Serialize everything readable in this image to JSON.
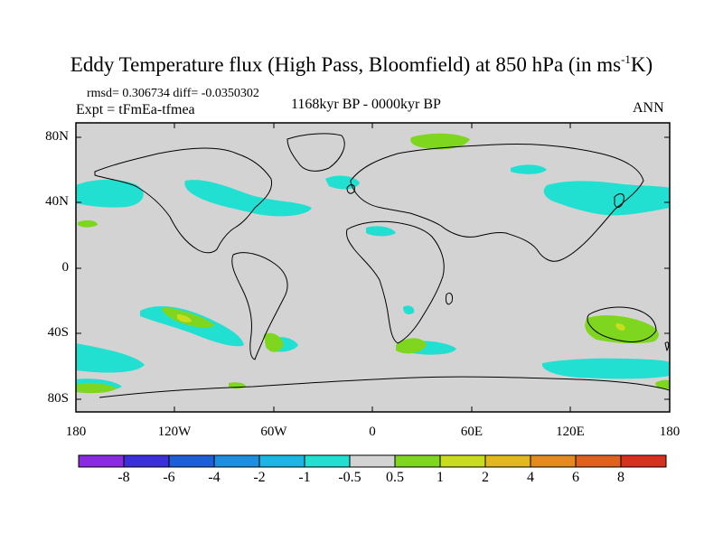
{
  "title": {
    "main": "Eddy Temperature flux (High Pass, Bloomfield) at 850 hPa (in ms",
    "superscript": "-1",
    "end": "K)"
  },
  "subtitle": {
    "stats": "rmsd= 0.306734 diff= -0.0350302",
    "experiment": "Expt = tFmEa-tfmea",
    "period": "1168kyr BP - 0000kyr BP",
    "season": "ANN"
  },
  "axes": {
    "lat_labels": [
      "80N",
      "40N",
      "0",
      "40S",
      "80S"
    ],
    "lon_labels": [
      "180",
      "120W",
      "60W",
      "0",
      "60E",
      "120E",
      "180"
    ]
  },
  "colorbar": {
    "labels": [
      "-8",
      "-6",
      "-4",
      "-2",
      "-1",
      "-0.5",
      "0.5",
      "1",
      "2",
      "4",
      "6",
      "8"
    ],
    "colors": [
      "#8a2be2",
      "#3a2fd8",
      "#1c5fd8",
      "#1e8fe0",
      "#19b6e6",
      "#21e0d2",
      "#d3d3d3",
      "#7ed61e",
      "#c9dc1e",
      "#e2b81e",
      "#e48a1e",
      "#e0601e",
      "#d8301e"
    ]
  },
  "map": {
    "background": "#d3d3d3",
    "land_outline": "#000000"
  }
}
